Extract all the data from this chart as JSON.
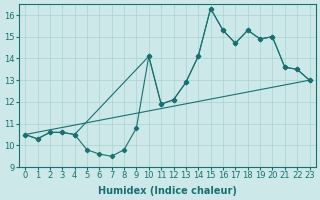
{
  "xlabel": "Humidex (Indice chaleur)",
  "bg_color": "#cce8e8",
  "grid_color": "#aad0d0",
  "line_color": "#1a7070",
  "xlim": [
    -0.5,
    23.5
  ],
  "ylim": [
    9,
    16.5
  ],
  "yticks": [
    9,
    10,
    11,
    12,
    13,
    14,
    15,
    16
  ],
  "xticks": [
    0,
    1,
    2,
    3,
    4,
    5,
    6,
    7,
    8,
    9,
    10,
    11,
    12,
    13,
    14,
    15,
    16,
    17,
    18,
    19,
    20,
    21,
    22,
    23
  ],
  "series1_x": [
    0,
    1,
    2,
    3,
    4,
    5,
    6,
    7,
    8,
    9,
    10,
    11,
    12,
    13,
    14,
    15,
    16,
    17,
    18,
    19,
    20,
    21,
    22,
    23
  ],
  "series1_y": [
    10.5,
    10.3,
    10.6,
    10.6,
    10.5,
    9.8,
    9.6,
    9.5,
    9.8,
    10.8,
    14.1,
    11.9,
    12.1,
    12.9,
    14.1,
    16.3,
    15.3,
    14.7,
    15.3,
    14.9,
    15.0,
    13.6,
    13.5,
    13.0
  ],
  "series2_x": [
    0,
    23
  ],
  "series2_y": [
    10.5,
    13.0
  ],
  "series3_x": [
    0,
    1,
    2,
    3,
    4,
    10,
    11,
    12,
    13,
    14,
    15,
    16,
    17,
    18,
    19,
    20,
    21,
    22,
    23
  ],
  "series3_y": [
    10.5,
    10.3,
    10.6,
    10.6,
    10.5,
    14.1,
    11.9,
    12.1,
    12.9,
    14.1,
    16.3,
    15.3,
    14.7,
    15.3,
    14.9,
    15.0,
    13.6,
    13.5,
    13.0
  ],
  "font_size_label": 7,
  "font_size_tick": 6
}
